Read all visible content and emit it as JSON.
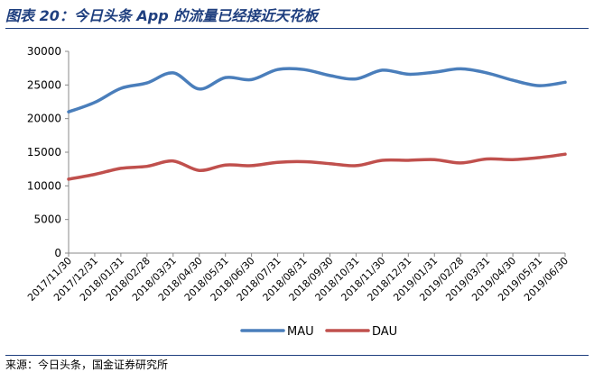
{
  "title": "图表 20：今日头条 App 的流量已经接近天花板",
  "source": "来源：今日头条，国金证券研究所",
  "chart_data": {
    "type": "line",
    "categories": [
      "2017/11/30",
      "2017/12/31",
      "2018/01/31",
      "2018/02/28",
      "2018/03/31",
      "2018/04/30",
      "2018/05/31",
      "2018/06/30",
      "2018/07/31",
      "2018/08/31",
      "2018/09/30",
      "2018/10/31",
      "2018/11/30",
      "2018/12/31",
      "2019/01/31",
      "2019/02/28",
      "2019/03/31",
      "2019/04/30",
      "2019/05/31",
      "2019/06/30"
    ],
    "series": [
      {
        "name": "MAU",
        "color": "#4a7ebb",
        "values": [
          21000,
          22400,
          24500,
          25300,
          26800,
          24400,
          26100,
          25800,
          27300,
          27300,
          26400,
          25900,
          27200,
          26600,
          26900,
          27400,
          26800,
          25700,
          24900,
          25400
        ]
      },
      {
        "name": "DAU",
        "color": "#c0504d",
        "values": [
          11000,
          11700,
          12600,
          12900,
          13700,
          12300,
          13100,
          13000,
          13500,
          13600,
          13300,
          13000,
          13800,
          13800,
          13900,
          13400,
          14000,
          13900,
          14200,
          14700
        ]
      }
    ],
    "yticks": [
      "0",
      "5000",
      "10000",
      "15000",
      "20000",
      "25000",
      "30000"
    ],
    "ylim": [
      0,
      30000
    ],
    "legend_position": "bottom"
  }
}
